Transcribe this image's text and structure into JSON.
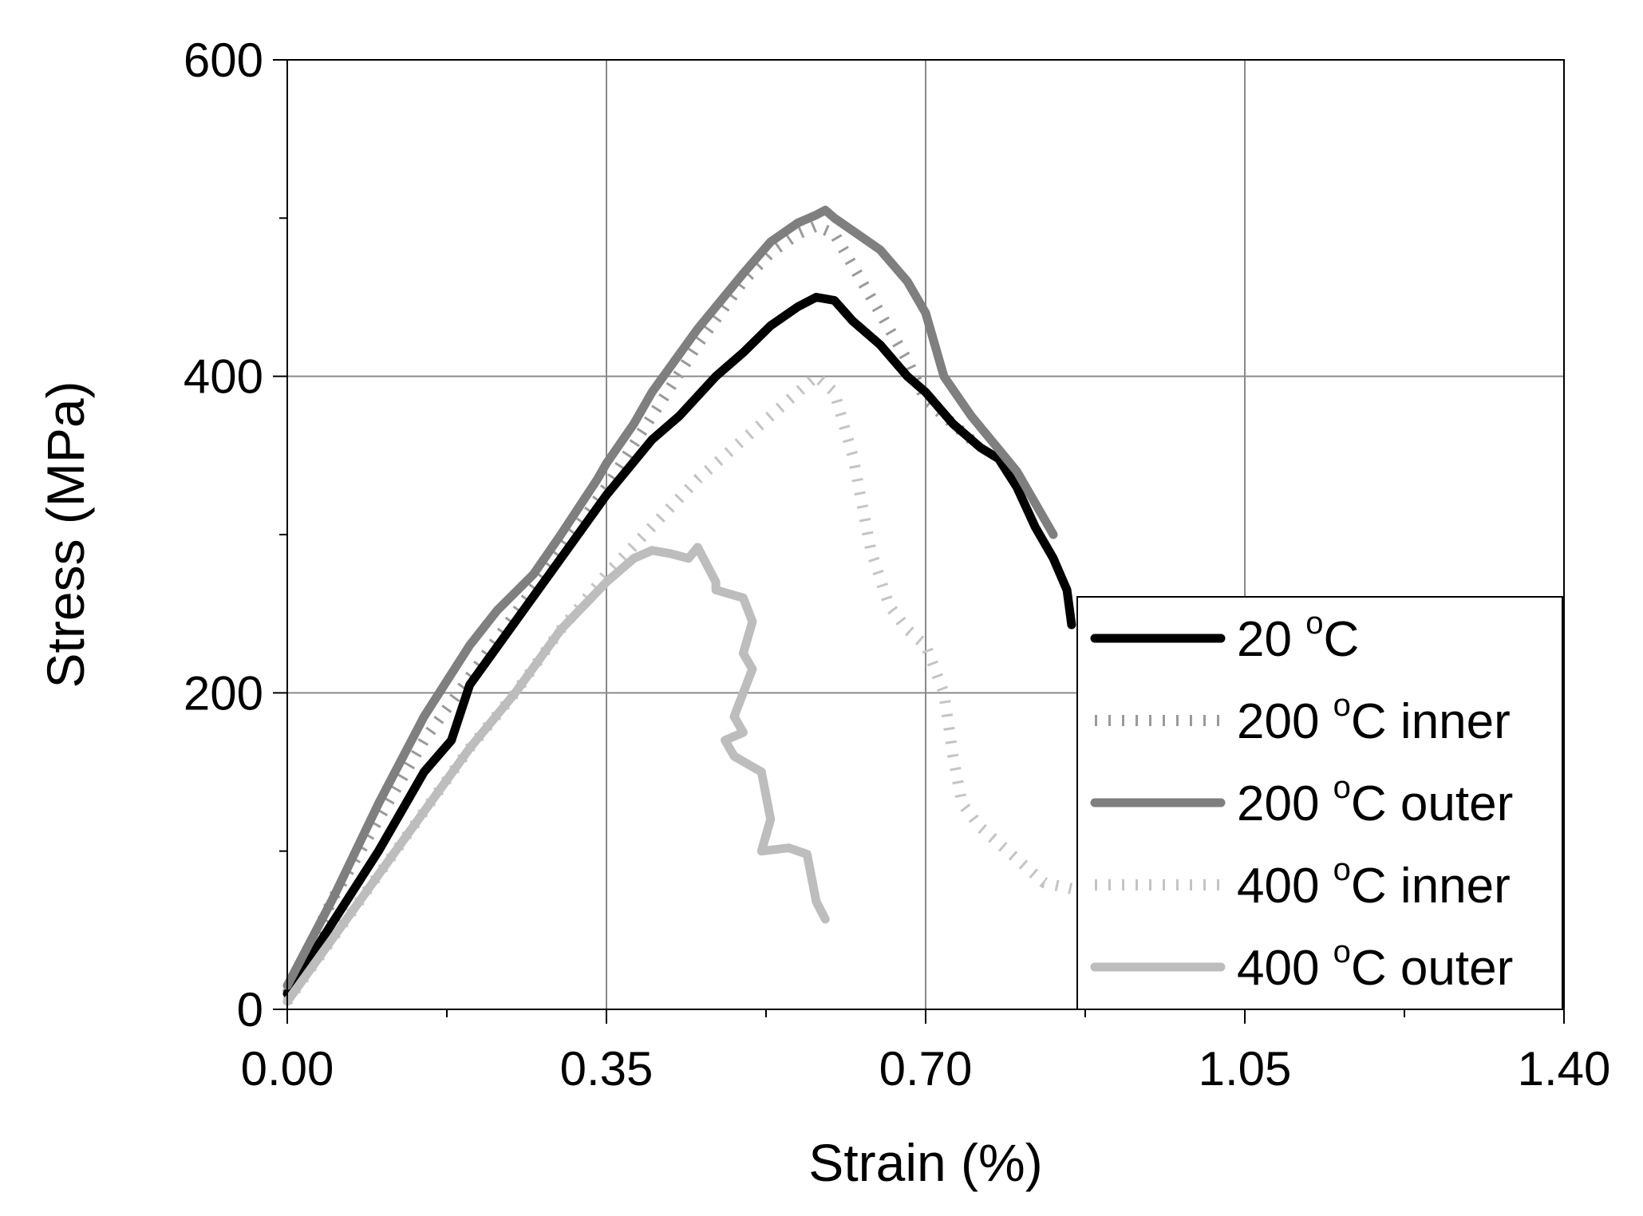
{
  "chart_data": {
    "type": "line",
    "xlabel": "Strain (%)",
    "ylabel": "Stress (MPa)",
    "xlim": [
      0,
      1.4
    ],
    "ylim": [
      0,
      600
    ],
    "xticks": [
      0,
      0.35,
      0.7,
      1.05,
      1.4
    ],
    "xtick_labels": [
      "0.00",
      "0.35",
      "0.70",
      "1.05",
      "1.40"
    ],
    "yticks": [
      0,
      200,
      400,
      600
    ],
    "ytick_labels": [
      "0",
      "200",
      "400",
      "600"
    ],
    "grid": true,
    "legend_position": "lower-right",
    "series": [
      {
        "name": "20 °C",
        "name_parts": [
          "20 ",
          "o",
          "C"
        ],
        "color": "#000000",
        "style": "solid",
        "x": [
          0.0,
          0.05,
          0.1,
          0.13,
          0.15,
          0.18,
          0.2,
          0.25,
          0.3,
          0.35,
          0.4,
          0.43,
          0.47,
          0.5,
          0.53,
          0.56,
          0.58,
          0.6,
          0.62,
          0.65,
          0.68,
          0.7,
          0.73,
          0.76,
          0.78,
          0.8,
          0.82,
          0.84,
          0.855,
          0.86
        ],
        "y": [
          10,
          55,
          100,
          130,
          150,
          170,
          205,
          245,
          285,
          325,
          360,
          375,
          400,
          415,
          432,
          444,
          450,
          448,
          435,
          420,
          400,
          390,
          370,
          355,
          348,
          330,
          305,
          285,
          265,
          243
        ]
      },
      {
        "name": "200 °C inner",
        "name_parts": [
          "200 ",
          "o",
          "C inner"
        ],
        "color": "#9a9a9a",
        "style": "dotted",
        "x": [
          0.0,
          0.05,
          0.1,
          0.15,
          0.2,
          0.25,
          0.3,
          0.35,
          0.4,
          0.45,
          0.5,
          0.53,
          0.56,
          0.58,
          0.6,
          0.62,
          0.65,
          0.68,
          0.7,
          0.73,
          0.75
        ],
        "y": [
          10,
          70,
          120,
          170,
          210,
          250,
          290,
          330,
          375,
          420,
          460,
          478,
          490,
          495,
          490,
          470,
          440,
          410,
          385,
          370,
          360
        ]
      },
      {
        "name": "200 °C outer",
        "name_parts": [
          "200 ",
          "o",
          "C outer"
        ],
        "color": "#7f7f7f",
        "style": "solid",
        "x": [
          0.0,
          0.05,
          0.1,
          0.15,
          0.2,
          0.23,
          0.27,
          0.3,
          0.34,
          0.35,
          0.38,
          0.4,
          0.45,
          0.5,
          0.53,
          0.56,
          0.58,
          0.59,
          0.6,
          0.62,
          0.65,
          0.68,
          0.7,
          0.72,
          0.75,
          0.8,
          0.83,
          0.84
        ],
        "y": [
          15,
          70,
          130,
          185,
          230,
          252,
          275,
          300,
          335,
          345,
          370,
          390,
          430,
          465,
          485,
          497,
          502,
          505,
          500,
          492,
          480,
          460,
          440,
          400,
          375,
          340,
          310,
          300
        ]
      },
      {
        "name": "400 °C inner",
        "name_parts": [
          "400 ",
          "o",
          "C inner"
        ],
        "color": "#c4c4c4",
        "style": "dotted",
        "x": [
          0.0,
          0.05,
          0.1,
          0.15,
          0.2,
          0.25,
          0.3,
          0.35,
          0.4,
          0.45,
          0.5,
          0.55,
          0.58,
          0.6,
          0.62,
          0.63,
          0.64,
          0.66,
          0.68,
          0.7,
          0.72,
          0.73,
          0.74,
          0.76,
          0.8,
          0.83,
          0.87
        ],
        "y": [
          5,
          45,
          85,
          125,
          165,
          200,
          240,
          275,
          305,
          335,
          360,
          385,
          400,
          390,
          350,
          320,
          290,
          255,
          240,
          230,
          200,
          160,
          130,
          115,
          95,
          80,
          75
        ]
      },
      {
        "name": "400 °C outer",
        "name_parts": [
          "400 ",
          "o",
          "C outer"
        ],
        "color": "#bdbdbd",
        "style": "solid",
        "x": [
          0.0,
          0.05,
          0.1,
          0.15,
          0.2,
          0.25,
          0.3,
          0.35,
          0.38,
          0.4,
          0.42,
          0.44,
          0.45,
          0.47,
          0.47,
          0.5,
          0.51,
          0.5,
          0.51,
          0.5,
          0.49,
          0.5,
          0.48,
          0.49,
          0.52,
          0.53,
          0.52,
          0.55,
          0.57,
          0.58,
          0.59
        ],
        "y": [
          5,
          45,
          85,
          125,
          165,
          200,
          240,
          270,
          285,
          290,
          288,
          285,
          292,
          270,
          265,
          260,
          245,
          225,
          215,
          200,
          185,
          175,
          170,
          160,
          150,
          120,
          100,
          102,
          98,
          68,
          57
        ]
      }
    ]
  }
}
